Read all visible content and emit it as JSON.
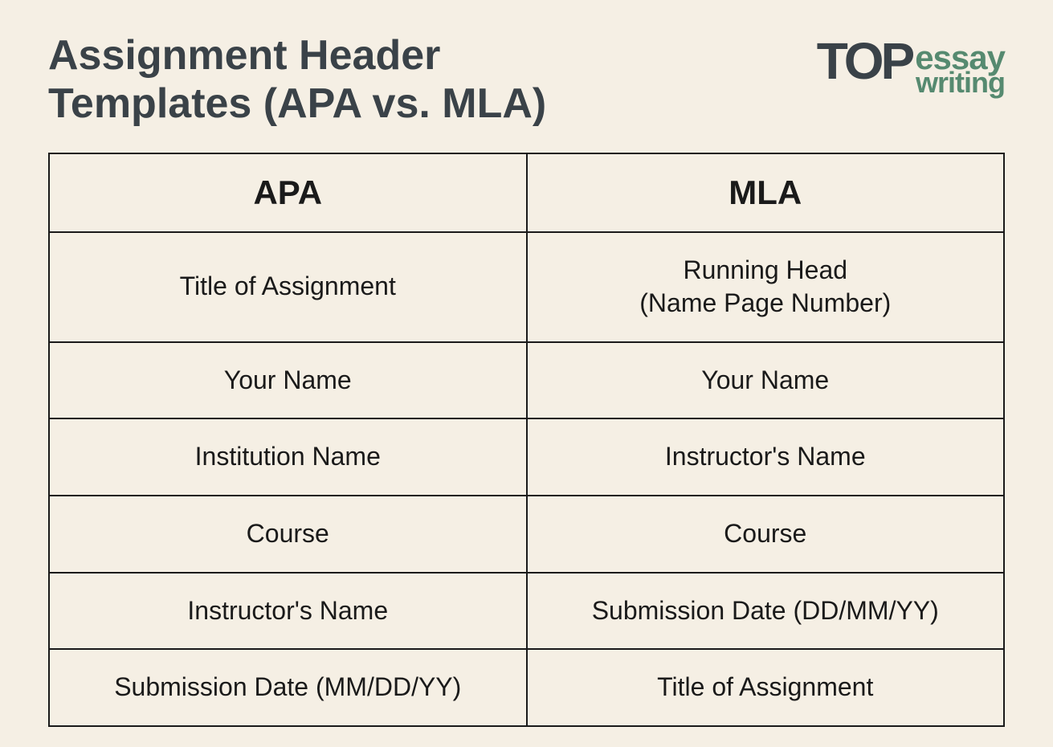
{
  "title": "Assignment Header Templates (APA vs. MLA)",
  "logo": {
    "top": "TOP",
    "essay": "essay",
    "writing": "writing"
  },
  "table": {
    "type": "table",
    "columns": [
      "APA",
      "MLA"
    ],
    "rows": [
      [
        "Title of Assignment",
        "Running Head\n(Name Page Number)"
      ],
      [
        "Your Name",
        "Your Name"
      ],
      [
        "Institution Name",
        "Instructor's Name"
      ],
      [
        "Course",
        "Course"
      ],
      [
        "Instructor's Name",
        "Submission Date (DD/MM/YY)"
      ],
      [
        "Submission Date (MM/DD/YY)",
        "Title of Assignment"
      ]
    ],
    "border_color": "#1a1a1a",
    "background_color": "#f5efe4",
    "header_fontsize": 42,
    "cell_fontsize": 32,
    "text_color": "#1a1a1a"
  },
  "colors": {
    "background": "#f5efe4",
    "title_text": "#3a4248",
    "logo_dark": "#3a4248",
    "logo_green": "#568a70",
    "table_border": "#1a1a1a"
  }
}
